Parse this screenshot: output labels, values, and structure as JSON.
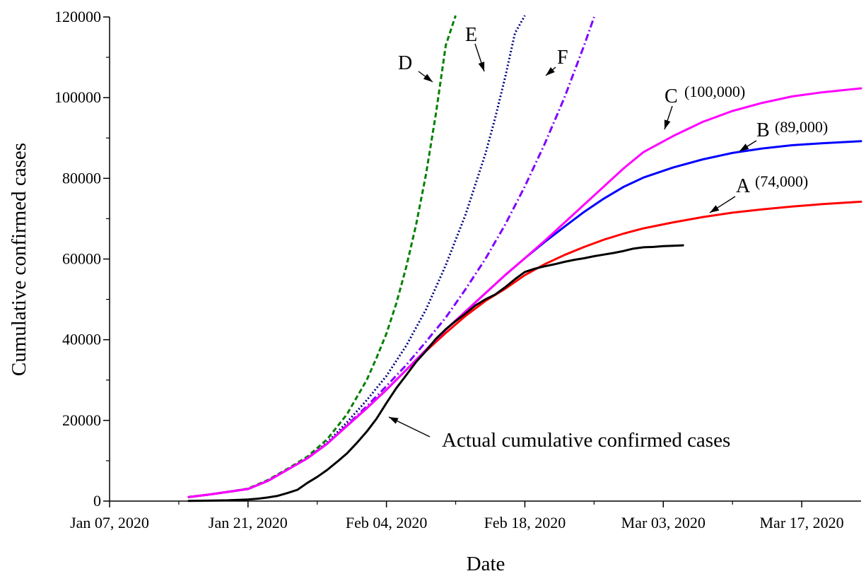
{
  "chart_data": {
    "type": "line",
    "xlabel": "Date",
    "ylabel": "Cumulative confirmed cases",
    "ylim": [
      0,
      120000
    ],
    "xlim": [
      "2020-01-07",
      "2020-03-23"
    ],
    "x_ticks": [
      "Jan 07, 2020",
      "Jan 21, 2020",
      "Feb 04, 2020",
      "Feb 18, 2020",
      "Mar 03, 2020",
      "Mar 17, 2020"
    ],
    "y_ticks": [
      "0",
      "20000",
      "40000",
      "60000",
      "80000",
      "100000",
      "120000"
    ],
    "grid": false,
    "annotation": "Actual cumulative confirmed cases",
    "series": [
      {
        "name": "Actual cumulative confirmed cases",
        "color": "#000000",
        "style": "solid",
        "points": [
          [
            "2020-01-15",
            50
          ],
          [
            "2020-01-17",
            100
          ],
          [
            "2020-01-19",
            200
          ],
          [
            "2020-01-21",
            400
          ],
          [
            "2020-01-22",
            600
          ],
          [
            "2020-01-23",
            900
          ],
          [
            "2020-01-24",
            1300
          ],
          [
            "2020-01-25",
            2000
          ],
          [
            "2020-01-26",
            2800
          ],
          [
            "2020-01-27",
            4500
          ],
          [
            "2020-01-28",
            6000
          ],
          [
            "2020-01-29",
            7700
          ],
          [
            "2020-01-30",
            9700
          ],
          [
            "2020-01-31",
            11800
          ],
          [
            "2020-02-01",
            14400
          ],
          [
            "2020-02-02",
            17200
          ],
          [
            "2020-02-03",
            20400
          ],
          [
            "2020-02-04",
            24300
          ],
          [
            "2020-02-05",
            28000
          ],
          [
            "2020-02-06",
            31200
          ],
          [
            "2020-02-07",
            34500
          ],
          [
            "2020-02-08",
            37200
          ],
          [
            "2020-02-09",
            40200
          ],
          [
            "2020-02-10",
            42600
          ],
          [
            "2020-02-11",
            44600
          ],
          [
            "2020-02-12",
            46500
          ],
          [
            "2020-02-13",
            48500
          ],
          [
            "2020-02-14",
            50000
          ],
          [
            "2020-02-15",
            51200
          ],
          [
            "2020-02-16",
            53000
          ],
          [
            "2020-02-17",
            55000
          ],
          [
            "2020-02-18",
            56800
          ],
          [
            "2020-02-19",
            57600
          ],
          [
            "2020-02-20",
            58200
          ],
          [
            "2020-02-21",
            58700
          ],
          [
            "2020-02-22",
            59300
          ],
          [
            "2020-02-23",
            59800
          ],
          [
            "2020-02-24",
            60200
          ],
          [
            "2020-02-25",
            60700
          ],
          [
            "2020-02-26",
            61100
          ],
          [
            "2020-02-27",
            61500
          ],
          [
            "2020-02-28",
            62000
          ],
          [
            "2020-02-29",
            62600
          ],
          [
            "2020-03-01",
            62900
          ],
          [
            "2020-03-02",
            63000
          ],
          [
            "2020-03-03",
            63200
          ],
          [
            "2020-03-04",
            63300
          ],
          [
            "2020-03-05",
            63400
          ]
        ]
      },
      {
        "name": "A",
        "label": "A",
        "note": "(74,000)",
        "color": "#ff0000",
        "style": "solid",
        "points": [
          [
            "2020-01-15",
            1000
          ],
          [
            "2020-01-17",
            1600
          ],
          [
            "2020-01-19",
            2300
          ],
          [
            "2020-01-21",
            3000
          ],
          [
            "2020-01-23",
            5000
          ],
          [
            "2020-01-25",
            7800
          ],
          [
            "2020-01-27",
            10600
          ],
          [
            "2020-01-29",
            14200
          ],
          [
            "2020-01-31",
            18600
          ],
          [
            "2020-02-02",
            23000
          ],
          [
            "2020-02-04",
            27600
          ],
          [
            "2020-02-06",
            32500
          ],
          [
            "2020-02-08",
            37200
          ],
          [
            "2020-02-10",
            41700
          ],
          [
            "2020-02-12",
            45900
          ],
          [
            "2020-02-14",
            49600
          ],
          [
            "2020-02-16",
            52600
          ],
          [
            "2020-02-18",
            56000
          ],
          [
            "2020-02-20",
            58700
          ],
          [
            "2020-02-22",
            61000
          ],
          [
            "2020-02-24",
            63000
          ],
          [
            "2020-02-26",
            64800
          ],
          [
            "2020-02-28",
            66300
          ],
          [
            "2020-03-01",
            67600
          ],
          [
            "2020-03-04",
            69100
          ],
          [
            "2020-03-07",
            70400
          ],
          [
            "2020-03-10",
            71500
          ],
          [
            "2020-03-13",
            72300
          ],
          [
            "2020-03-16",
            73000
          ],
          [
            "2020-03-19",
            73600
          ],
          [
            "2020-03-23",
            74200
          ]
        ]
      },
      {
        "name": "B",
        "label": "B",
        "note": "(89,000)",
        "color": "#0000ff",
        "style": "solid",
        "points": [
          [
            "2020-01-15",
            1000
          ],
          [
            "2020-01-17",
            1600
          ],
          [
            "2020-01-19",
            2300
          ],
          [
            "2020-01-21",
            3000
          ],
          [
            "2020-01-23",
            5000
          ],
          [
            "2020-01-25",
            7800
          ],
          [
            "2020-01-27",
            10600
          ],
          [
            "2020-01-29",
            14200
          ],
          [
            "2020-01-31",
            18600
          ],
          [
            "2020-02-02",
            23000
          ],
          [
            "2020-02-04",
            27600
          ],
          [
            "2020-02-06",
            32500
          ],
          [
            "2020-02-08",
            37500
          ],
          [
            "2020-02-10",
            42500
          ],
          [
            "2020-02-12",
            47000
          ],
          [
            "2020-02-14",
            51500
          ],
          [
            "2020-02-16",
            56000
          ],
          [
            "2020-02-18",
            60200
          ],
          [
            "2020-02-20",
            64200
          ],
          [
            "2020-02-22",
            68000
          ],
          [
            "2020-02-24",
            71700
          ],
          [
            "2020-02-26",
            75000
          ],
          [
            "2020-02-28",
            77900
          ],
          [
            "2020-03-01",
            80200
          ],
          [
            "2020-03-04",
            82700
          ],
          [
            "2020-03-07",
            84700
          ],
          [
            "2020-03-10",
            86300
          ],
          [
            "2020-03-13",
            87400
          ],
          [
            "2020-03-16",
            88200
          ],
          [
            "2020-03-19",
            88700
          ],
          [
            "2020-03-23",
            89200
          ]
        ]
      },
      {
        "name": "C",
        "label": "C",
        "note": "(100,000)",
        "color": "#ff00ff",
        "style": "solid",
        "points": [
          [
            "2020-01-15",
            1000
          ],
          [
            "2020-01-17",
            1600
          ],
          [
            "2020-01-19",
            2300
          ],
          [
            "2020-01-21",
            3000
          ],
          [
            "2020-01-23",
            5000
          ],
          [
            "2020-01-25",
            7800
          ],
          [
            "2020-01-27",
            10600
          ],
          [
            "2020-01-29",
            14200
          ],
          [
            "2020-01-31",
            18600
          ],
          [
            "2020-02-02",
            23000
          ],
          [
            "2020-02-04",
            27600
          ],
          [
            "2020-02-06",
            32500
          ],
          [
            "2020-02-08",
            37500
          ],
          [
            "2020-02-10",
            42500
          ],
          [
            "2020-02-12",
            47000
          ],
          [
            "2020-02-14",
            51500
          ],
          [
            "2020-02-16",
            56000
          ],
          [
            "2020-02-18",
            60200
          ],
          [
            "2020-02-20",
            64500
          ],
          [
            "2020-02-22",
            69000
          ],
          [
            "2020-02-24",
            73500
          ],
          [
            "2020-02-26",
            78000
          ],
          [
            "2020-02-28",
            82500
          ],
          [
            "2020-03-01",
            86500
          ],
          [
            "2020-03-04",
            90500
          ],
          [
            "2020-03-07",
            94000
          ],
          [
            "2020-03-10",
            96700
          ],
          [
            "2020-03-13",
            98700
          ],
          [
            "2020-03-16",
            100300
          ],
          [
            "2020-03-19",
            101300
          ],
          [
            "2020-03-23",
            102300
          ]
        ]
      },
      {
        "name": "D",
        "label": "D",
        "color": "#008000",
        "style": "dashed",
        "points": [
          [
            "2020-01-15",
            1000
          ],
          [
            "2020-01-17",
            1600
          ],
          [
            "2020-01-19",
            2300
          ],
          [
            "2020-01-21",
            3100
          ],
          [
            "2020-01-23",
            5200
          ],
          [
            "2020-01-25",
            8000
          ],
          [
            "2020-01-27",
            11000
          ],
          [
            "2020-01-29",
            15300
          ],
          [
            "2020-01-31",
            21500
          ],
          [
            "2020-02-02",
            30000
          ],
          [
            "2020-02-03",
            35500
          ],
          [
            "2020-02-04",
            41500
          ],
          [
            "2020-02-05",
            49000
          ],
          [
            "2020-02-06",
            58000
          ],
          [
            "2020-02-07",
            68500
          ],
          [
            "2020-02-08",
            81000
          ],
          [
            "2020-02-09",
            96000
          ],
          [
            "2020-02-10",
            113000
          ],
          [
            "2020-02-11",
            121000
          ]
        ]
      },
      {
        "name": "E",
        "label": "E",
        "color": "#000080",
        "style": "dotted",
        "points": [
          [
            "2020-01-15",
            1000
          ],
          [
            "2020-01-17",
            1600
          ],
          [
            "2020-01-19",
            2300
          ],
          [
            "2020-01-21",
            3000
          ],
          [
            "2020-01-23",
            5000
          ],
          [
            "2020-01-25",
            7800
          ],
          [
            "2020-01-27",
            10600
          ],
          [
            "2020-01-29",
            14500
          ],
          [
            "2020-01-31",
            19500
          ],
          [
            "2020-02-02",
            25000
          ],
          [
            "2020-02-04",
            31000
          ],
          [
            "2020-02-06",
            38500
          ],
          [
            "2020-02-08",
            47500
          ],
          [
            "2020-02-10",
            58500
          ],
          [
            "2020-02-12",
            71000
          ],
          [
            "2020-02-14",
            86000
          ],
          [
            "2020-02-15",
            95000
          ],
          [
            "2020-02-16",
            105000
          ],
          [
            "2020-02-17",
            116000
          ],
          [
            "2020-02-18",
            121000
          ]
        ]
      },
      {
        "name": "F",
        "label": "F",
        "color": "#8000ff",
        "style": "dashdot",
        "points": [
          [
            "2020-01-15",
            1000
          ],
          [
            "2020-01-17",
            1600
          ],
          [
            "2020-01-19",
            2300
          ],
          [
            "2020-01-21",
            3000
          ],
          [
            "2020-01-23",
            5000
          ],
          [
            "2020-01-25",
            7800
          ],
          [
            "2020-01-27",
            10600
          ],
          [
            "2020-01-29",
            14200
          ],
          [
            "2020-01-31",
            18800
          ],
          [
            "2020-02-02",
            23500
          ],
          [
            "2020-02-04",
            28500
          ],
          [
            "2020-02-06",
            33700
          ],
          [
            "2020-02-08",
            39500
          ],
          [
            "2020-02-10",
            45500
          ],
          [
            "2020-02-12",
            52500
          ],
          [
            "2020-02-14",
            60000
          ],
          [
            "2020-02-16",
            68500
          ],
          [
            "2020-02-18",
            78000
          ],
          [
            "2020-02-20",
            88500
          ],
          [
            "2020-02-22",
            100000
          ],
          [
            "2020-02-24",
            113000
          ],
          [
            "2020-02-25",
            120000
          ]
        ]
      }
    ]
  }
}
